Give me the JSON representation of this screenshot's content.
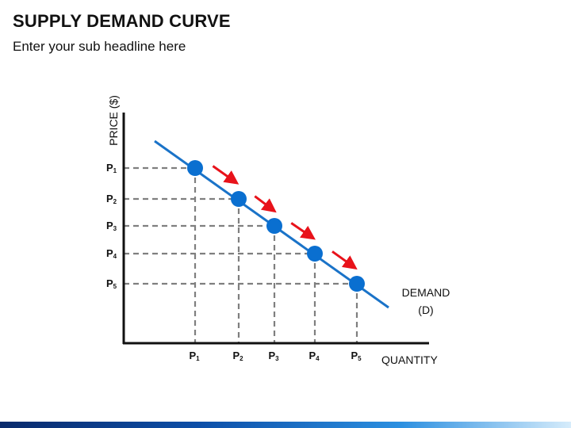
{
  "slide": {
    "title": "SUPPLY DEMAND CURVE",
    "subtitle": "Enter your sub headline here"
  },
  "diagram": {
    "y_axis_label": "PRICE ($)",
    "x_axis_label": "QUANTITY",
    "curve_label_line1": "DEMAND",
    "curve_label_line2": "(D)",
    "price_labels": [
      {
        "letter": "P",
        "sub": "1"
      },
      {
        "letter": "P",
        "sub": "2"
      },
      {
        "letter": "P",
        "sub": "3"
      },
      {
        "letter": "P",
        "sub": "4"
      },
      {
        "letter": "P",
        "sub": "5"
      }
    ],
    "quantity_labels": [
      {
        "letter": "P",
        "sub": "1"
      },
      {
        "letter": "P",
        "sub": "2"
      },
      {
        "letter": "P",
        "sub": "3"
      },
      {
        "letter": "P",
        "sub": "4"
      },
      {
        "letter": "P",
        "sub": "5"
      }
    ],
    "arrow_count": 4,
    "colors": {
      "curve": "#1a73c8",
      "point": "#0a6fd0",
      "arrow": "#e8121a",
      "guide": "#7f7f7f",
      "axis": "#111111",
      "bottom_bar": "#0d4fa8"
    }
  }
}
